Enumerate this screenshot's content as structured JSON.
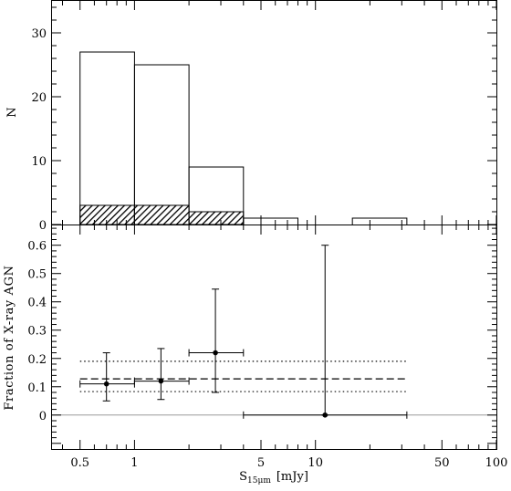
{
  "chart_data": [
    {
      "type": "bar",
      "panel": "top",
      "ylabel": "N",
      "x_scale": "log",
      "xlim": [
        0.35,
        100
      ],
      "ylim": [
        0,
        35
      ],
      "yticks": [
        0,
        10,
        20,
        30
      ],
      "yticks_labels": [
        "0",
        "10",
        "20",
        "30"
      ],
      "series": [
        {
          "style": "open-histogram",
          "bins": [
            {
              "x0": 0.5,
              "x1": 1,
              "value": 27
            },
            {
              "x0": 1,
              "x1": 2,
              "value": 25
            },
            {
              "x0": 2,
              "x1": 4,
              "value": 9
            },
            {
              "x0": 4,
              "x1": 8,
              "value": 1
            },
            {
              "x0": 16,
              "x1": 32,
              "value": 1
            }
          ]
        },
        {
          "style": "hatched-histogram",
          "bins": [
            {
              "x0": 0.5,
              "x1": 1,
              "value": 3
            },
            {
              "x0": 1,
              "x1": 2,
              "value": 3
            },
            {
              "x0": 2,
              "x1": 4,
              "value": 2
            }
          ]
        }
      ]
    },
    {
      "type": "scatter",
      "panel": "bottom",
      "xlabel": "S15μm [mJy]",
      "xlabel_main": "S",
      "xlabel_sub": "15μm",
      "xlabel_units": "[mJy]",
      "ylabel": "Fraction of X-ray AGN",
      "x_scale": "log",
      "xlim": [
        0.35,
        100
      ],
      "ylim": [
        -0.12,
        0.67
      ],
      "xticks": [
        0.5,
        1,
        5,
        10,
        50,
        100
      ],
      "xticks_labels": [
        "0.5",
        "1",
        "5",
        "10",
        "50",
        "100"
      ],
      "yticks": [
        0,
        0.1,
        0.2,
        0.3,
        0.4,
        0.5,
        0.6
      ],
      "yticks_labels": [
        "0",
        "0.1",
        "0.2",
        "0.3",
        "0.4",
        "0.5",
        "0.6"
      ],
      "points": [
        {
          "x": 0.7,
          "y": 0.11,
          "x_lo": 0.5,
          "x_hi": 1,
          "y_lo": 0.05,
          "y_hi": 0.22
        },
        {
          "x": 1.4,
          "y": 0.12,
          "x_lo": 1,
          "x_hi": 2,
          "y_lo": 0.055,
          "y_hi": 0.235
        },
        {
          "x": 2.8,
          "y": 0.22,
          "x_lo": 2,
          "x_hi": 4,
          "y_lo": 0.08,
          "y_hi": 0.445
        },
        {
          "x": 11.3,
          "y": 0.0,
          "x_lo": 4,
          "x_hi": 32,
          "y_lo": 0.0,
          "y_hi": 0.6
        }
      ],
      "reference_lines": {
        "x_range": [
          0.5,
          32
        ],
        "dashed": 0.128,
        "dotted": [
          0.083,
          0.19
        ],
        "zero_line": 0
      }
    }
  ]
}
